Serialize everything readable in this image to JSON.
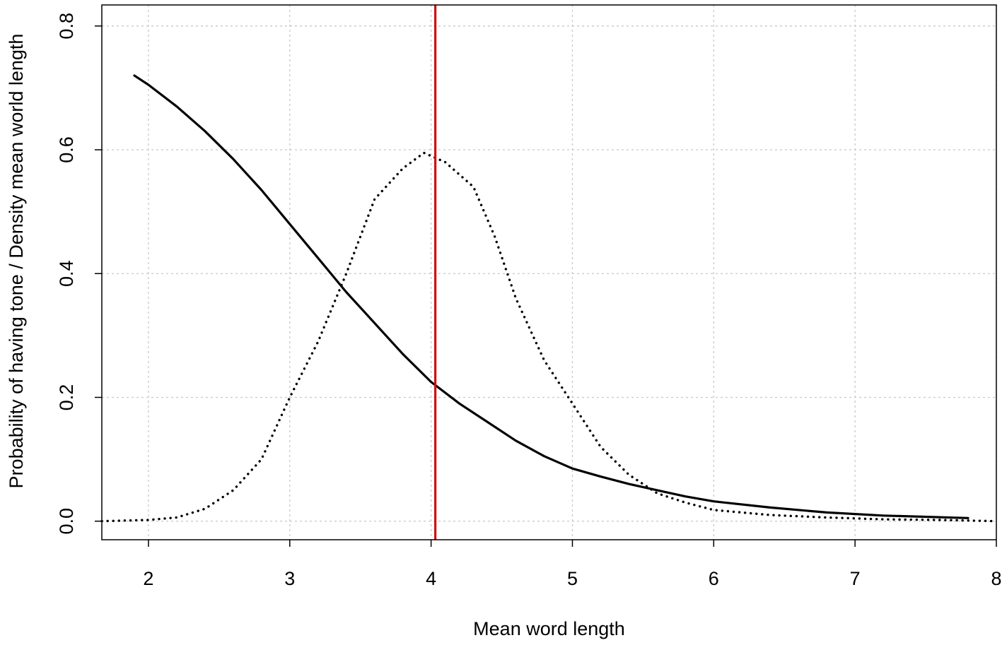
{
  "chart_data": {
    "type": "line",
    "title": "",
    "xlabel": "Mean word length",
    "ylabel": "Probability of having tone / Density mean world length",
    "xlim": [
      1.67,
      8.0
    ],
    "ylim": [
      -0.03,
      0.834
    ],
    "x_ticks": [
      2,
      3,
      4,
      5,
      6,
      7,
      8
    ],
    "y_ticks": [
      0.0,
      0.2,
      0.4,
      0.6,
      0.8
    ],
    "grid": true,
    "legend": "none",
    "series": [
      {
        "style": "solid",
        "color": "#000000",
        "points": [
          [
            1.9,
            0.72
          ],
          [
            2.0,
            0.705
          ],
          [
            2.2,
            0.67
          ],
          [
            2.4,
            0.63
          ],
          [
            2.6,
            0.585
          ],
          [
            2.8,
            0.535
          ],
          [
            3.0,
            0.48
          ],
          [
            3.2,
            0.425
          ],
          [
            3.4,
            0.37
          ],
          [
            3.6,
            0.32
          ],
          [
            3.8,
            0.27
          ],
          [
            4.0,
            0.225
          ],
          [
            4.2,
            0.19
          ],
          [
            4.4,
            0.16
          ],
          [
            4.6,
            0.13
          ],
          [
            4.8,
            0.105
          ],
          [
            5.0,
            0.085
          ],
          [
            5.2,
            0.072
          ],
          [
            5.4,
            0.06
          ],
          [
            5.6,
            0.05
          ],
          [
            5.8,
            0.04
          ],
          [
            6.0,
            0.032
          ],
          [
            6.4,
            0.022
          ],
          [
            6.8,
            0.014
          ],
          [
            7.2,
            0.009
          ],
          [
            7.8,
            0.005
          ]
        ]
      },
      {
        "style": "dotted",
        "color": "#000000",
        "points": [
          [
            1.67,
            0.0
          ],
          [
            2.0,
            0.002
          ],
          [
            2.2,
            0.006
          ],
          [
            2.4,
            0.02
          ],
          [
            2.6,
            0.05
          ],
          [
            2.8,
            0.1
          ],
          [
            3.0,
            0.2
          ],
          [
            3.2,
            0.29
          ],
          [
            3.4,
            0.4
          ],
          [
            3.5,
            0.46
          ],
          [
            3.6,
            0.52
          ],
          [
            3.8,
            0.57
          ],
          [
            3.95,
            0.595
          ],
          [
            4.1,
            0.58
          ],
          [
            4.3,
            0.54
          ],
          [
            4.45,
            0.46
          ],
          [
            4.6,
            0.36
          ],
          [
            4.8,
            0.26
          ],
          [
            5.0,
            0.19
          ],
          [
            5.2,
            0.12
          ],
          [
            5.4,
            0.075
          ],
          [
            5.6,
            0.045
          ],
          [
            5.8,
            0.03
          ],
          [
            6.0,
            0.018
          ],
          [
            6.4,
            0.01
          ],
          [
            6.8,
            0.006
          ],
          [
            7.2,
            0.003
          ],
          [
            7.6,
            0.002
          ],
          [
            8.0,
            0.0
          ]
        ]
      }
    ],
    "vline": {
      "x": 4.03,
      "color": "#d01010"
    }
  }
}
